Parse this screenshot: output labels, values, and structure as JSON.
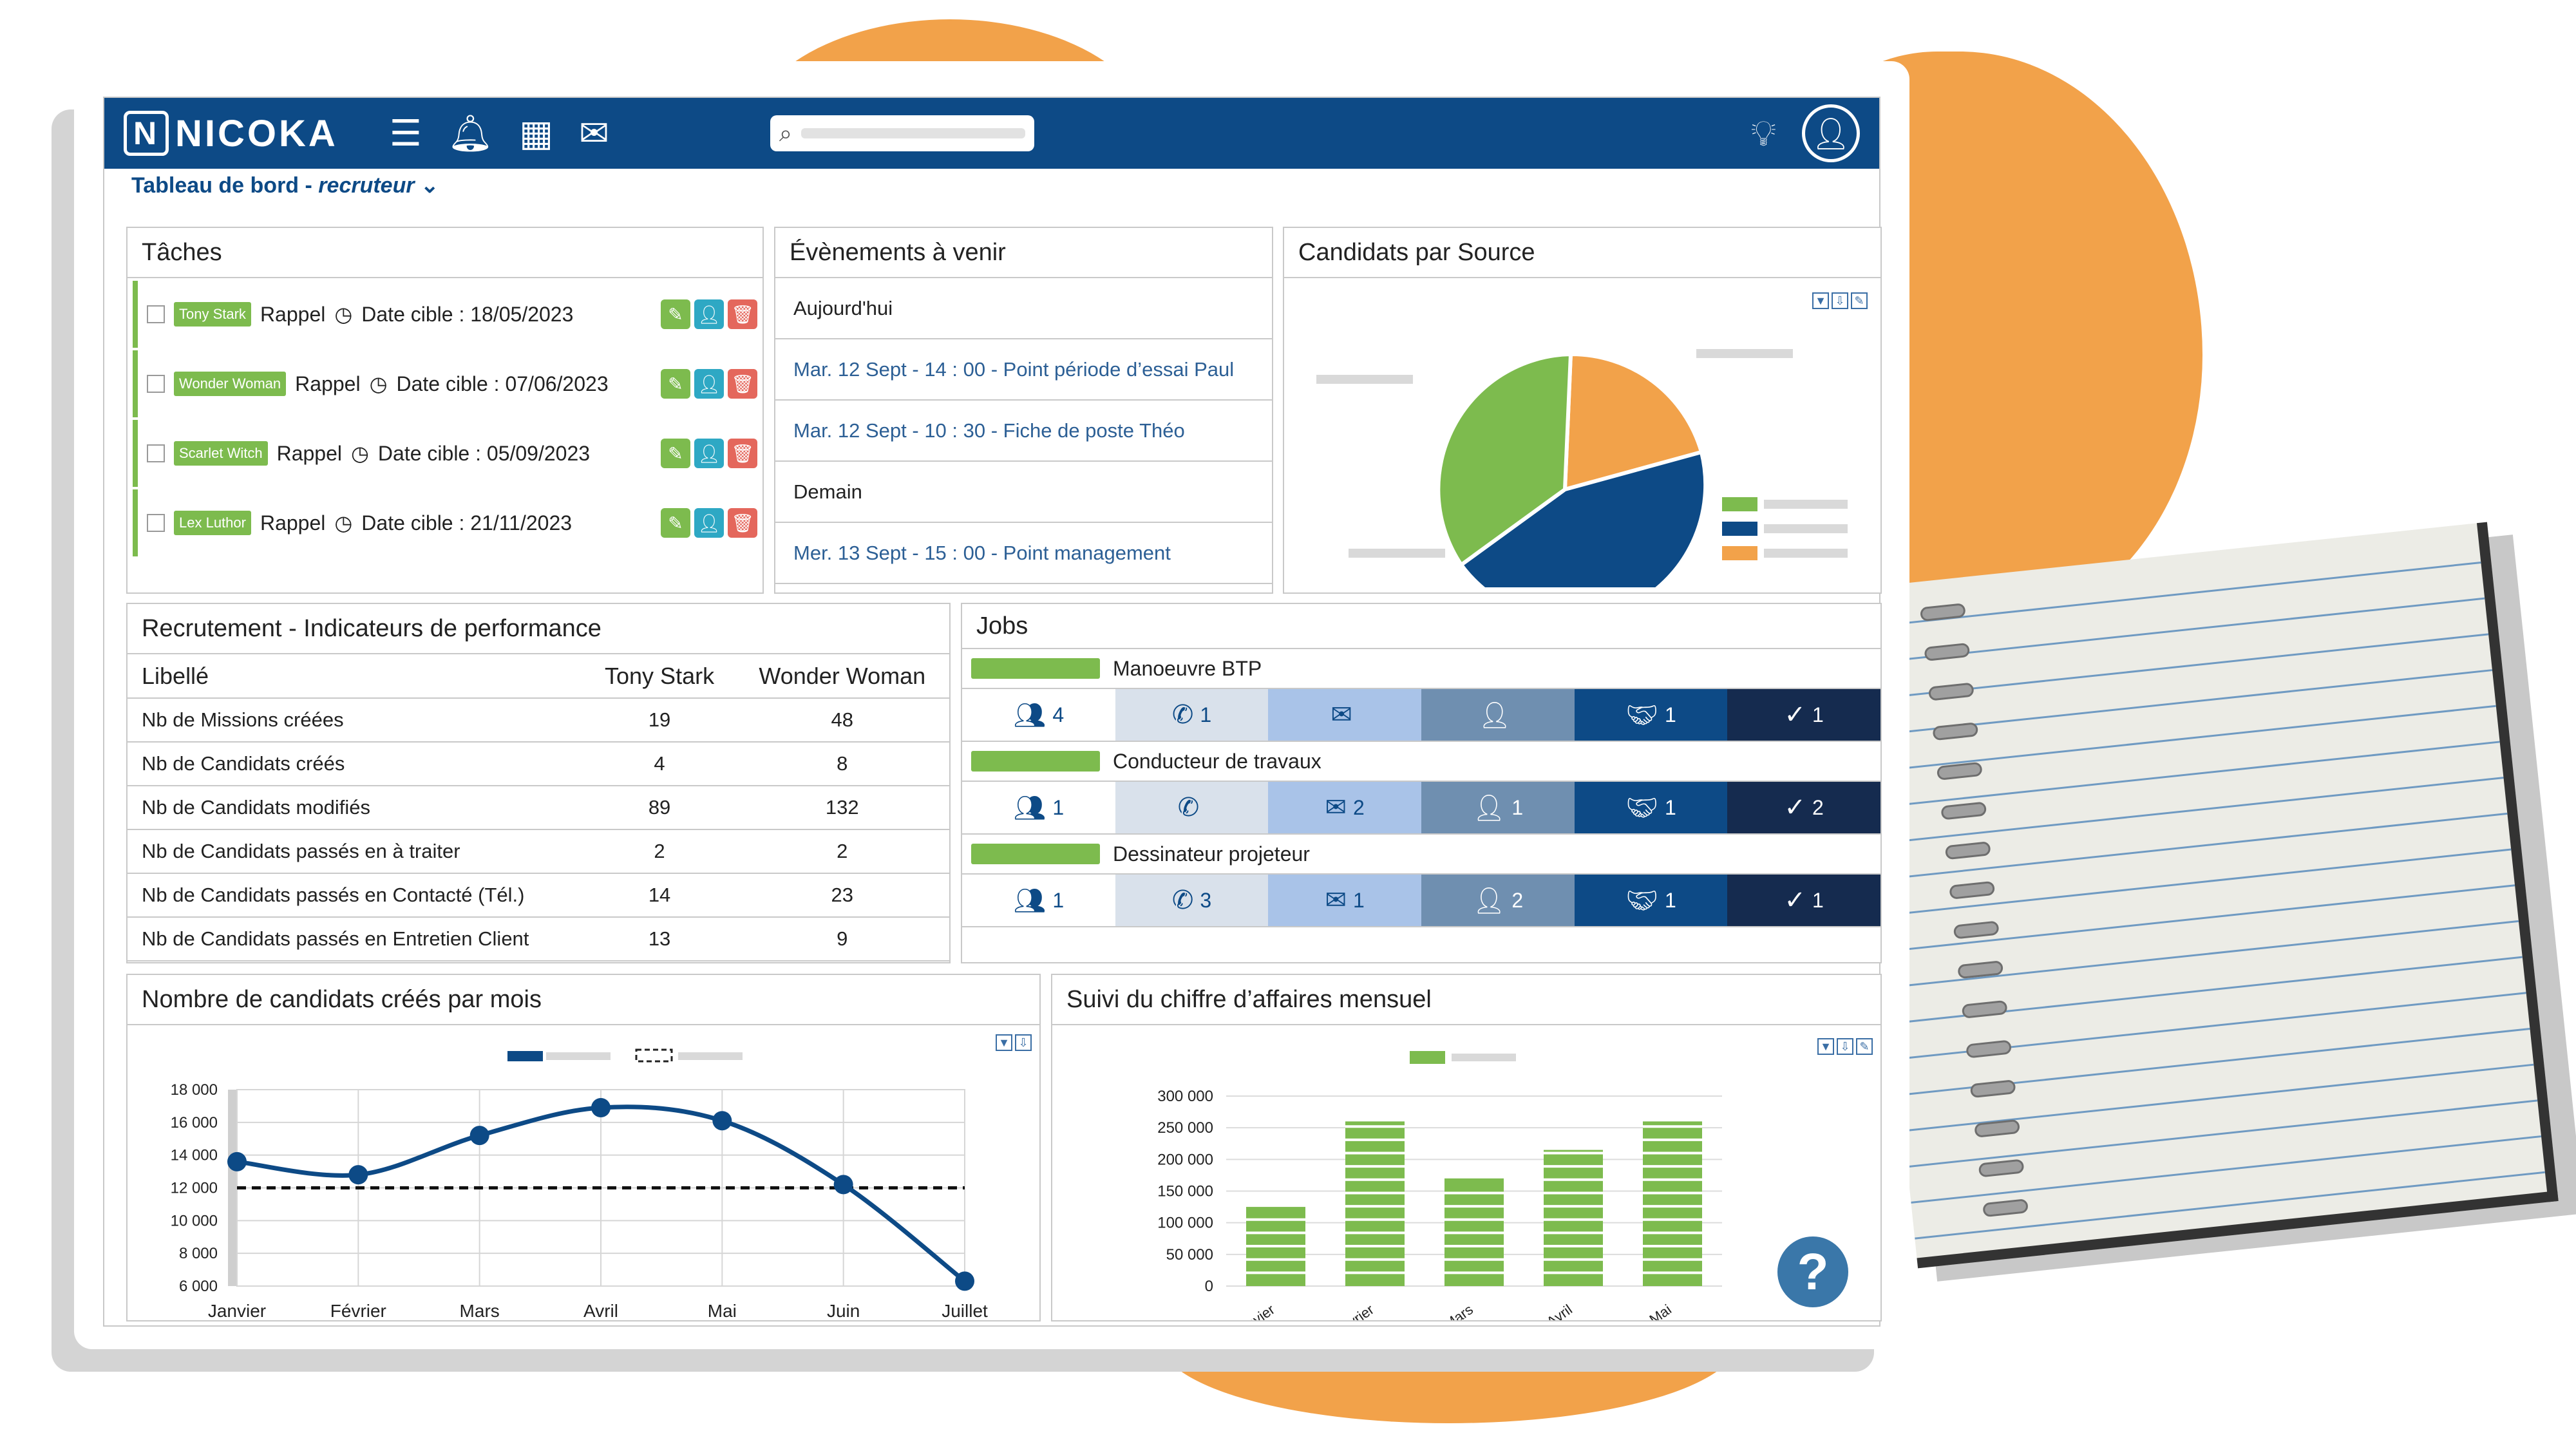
{
  "app": {
    "brand": "NICOKA"
  },
  "breadcrumb": {
    "title": "Tableau de bord",
    "separator": " - ",
    "role": "recruteur"
  },
  "tasks": {
    "title": "Tâches",
    "items": [
      {
        "who": "Tony Stark",
        "type": "Rappel",
        "date": "Date cible : 18/05/2023"
      },
      {
        "who": "Wonder Woman",
        "type": "Rappel",
        "date": "Date cible : 07/06/2023"
      },
      {
        "who": "Scarlet Witch",
        "type": "Rappel",
        "date": "Date cible : 05/09/2023"
      },
      {
        "who": "Lex Luthor",
        "type": "Rappel",
        "date": "Date cible : 21/11/2023"
      }
    ]
  },
  "events": {
    "title": "Évènements à venir",
    "items": [
      {
        "text": "Aujourd'hui",
        "header": true
      },
      {
        "text": "Mar. 12 Sept - 14 : 00 - Point période d’essai Paul",
        "header": false
      },
      {
        "text": "Mar. 12 Sept - 10 : 30 - Fiche de poste Théo",
        "header": false
      },
      {
        "text": "Demain",
        "header": true
      },
      {
        "text": "Mer. 13 Sept - 15 : 00 - Point management",
        "header": false
      }
    ]
  },
  "sources": {
    "title": "Candidats par Source",
    "slice_colors": [
      "#f2a24a",
      "#0d4a86",
      "#7dbb4e"
    ]
  },
  "kpi": {
    "title": "Recrutement - Indicateurs de performance",
    "headers": [
      "Libellé",
      "Tony Stark",
      "Wonder Woman"
    ],
    "rows": [
      [
        "Nb de Missions créées",
        "19",
        "48"
      ],
      [
        "Nb de Candidats créés",
        "4",
        "8"
      ],
      [
        "Nb de Candidats modifiés",
        "89",
        "132"
      ],
      [
        "Nb de Candidats passés en à traiter",
        "2",
        "2"
      ],
      [
        "Nb de Candidats passés en Contacté (Tél.)",
        "14",
        "23"
      ],
      [
        "Nb de Candidats passés en Entretien Client",
        "13",
        "9"
      ]
    ]
  },
  "jobs": {
    "title": "Jobs",
    "items": [
      {
        "name": "Manoeuvre BTP",
        "counts": [
          "4",
          "1",
          "",
          "",
          "1",
          "1"
        ]
      },
      {
        "name": "Conducteur de travaux",
        "counts": [
          "1",
          "",
          "2",
          "1",
          "1",
          "2"
        ]
      },
      {
        "name": "Dessinateur projeteur",
        "counts": [
          "1",
          "3",
          "1",
          "2",
          "1",
          "1"
        ]
      }
    ]
  },
  "candidates_chart": {
    "title": "Nombre de candidats créés par mois",
    "chart_data": {
      "type": "line",
      "categories": [
        "Janvier",
        "Février",
        "Mars",
        "Avril",
        "Mai",
        "Juin",
        "Juillet"
      ],
      "series": [
        {
          "values": [
            13600,
            12800,
            15200,
            16900,
            16100,
            12200,
            6300
          ]
        }
      ],
      "reference": 12000,
      "ylim": [
        6000,
        18000
      ],
      "yticks": [
        "18 000",
        "16 000",
        "14 000",
        "12 000",
        "10 000",
        "8 000",
        "6 000"
      ]
    }
  },
  "revenue_chart": {
    "title": "Suivi du chiffre d’affaires mensuel",
    "chart_data": {
      "type": "bar",
      "categories": [
        "Janvier",
        "Février",
        "Mars",
        "Avril",
        "Mai"
      ],
      "values": [
        125000,
        260000,
        170000,
        215000,
        260000
      ],
      "ylim": [
        0,
        300000
      ],
      "yticks": [
        "300 000",
        "250 000",
        "200 000",
        "150 000",
        "100 000",
        "50 000",
        "0"
      ]
    }
  },
  "help": {
    "label": "?"
  }
}
